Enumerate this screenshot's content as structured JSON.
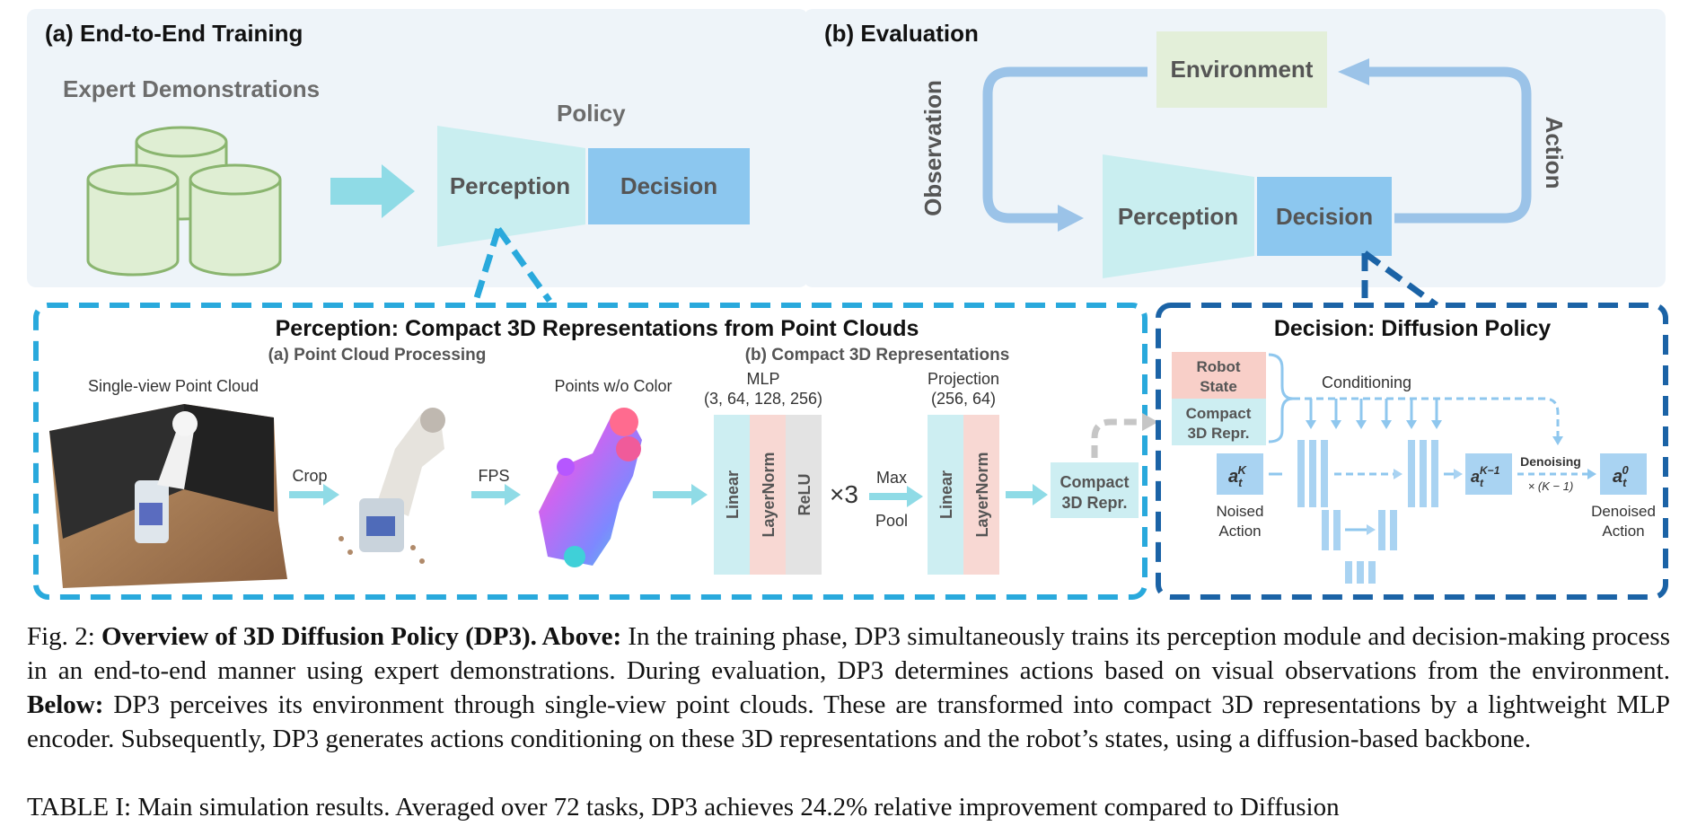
{
  "training": {
    "title": "(a) End-to-End Training",
    "expert": "Expert Demonstrations",
    "policy": "Policy",
    "perception": "Perception",
    "decision": "Decision"
  },
  "evaluation": {
    "title": "(b) Evaluation",
    "environment": "Environment",
    "observation": "Observation",
    "action": "Action",
    "perception": "Perception",
    "decision": "Decision"
  },
  "perception_box": {
    "title": "Perception: Compact 3D Representations from Point Clouds",
    "sub_a": "(a) Point Cloud Processing",
    "sub_b": "(b) Compact 3D Representations",
    "single_view": "Single-view Point Cloud",
    "crop": "Crop",
    "fps": "FPS",
    "points_wo_color": "Points w/o Color",
    "mlp_label": "MLP",
    "mlp_dims": "(3, 64, 128, 256)",
    "linear": "Linear",
    "layernorm": "LayerNorm",
    "relu": "ReLU",
    "times3": "×3",
    "max": "Max",
    "pool": "Pool",
    "projection": "Projection",
    "proj_dims": "(256, 64)",
    "compact1": "Compact",
    "compact2": "3D Repr."
  },
  "decision_box": {
    "title": "Decision: Diffusion Policy",
    "robot1": "Robot",
    "robot2": "State",
    "compact1": "Compact",
    "compact2": "3D Repr.",
    "conditioning": "Conditioning",
    "noised1": "Noised",
    "noised2": "Action",
    "denoised1": "Denoised",
    "denoised2": "Action",
    "denoising": "Denoising",
    "times_k": "× (K − 1)",
    "a_sym": "a",
    "t_sub": "t",
    "k_sup": "K",
    "km1_sup": "K−1",
    "zero_sup": "0"
  },
  "caption": {
    "fig": "Fig. 2: ",
    "title_bold": "Overview of 3D Diffusion Policy (DP3). Above:",
    "text1": " In the training phase, DP3 simultaneously trains its perception module and decision-making process in an end-to-end manner using expert demonstrations. During evaluation, DP3 determines actions based on visual observations from the environment. ",
    "below_bold": "Below:",
    "text2": " DP3 perceives its environment through single-view point clouds. These are transformed into compact 3D representations by a lightweight MLP encoder. Subsequently, DP3 generates actions conditioning on these 3D representations and the robot’s states, using a diffusion-based backbone."
  },
  "cutoff_line": "TABLE I: Main simulation results. Averaged over 72 tasks, DP3 achieves 24.2% relative improvement compared to Diffusion",
  "colors": {
    "panel_bg": "#eef4f9",
    "perception_fill": "#c9eef0",
    "decision_fill": "#8cc7ef",
    "env_fill": "#e3efd9",
    "arrow_cyan": "#8fdbe6",
    "arrow_blue": "#9bc3e8",
    "dash_cyan": "#29a9dc",
    "dash_navy": "#1b63a6",
    "robot_pink": "#f8cfc8",
    "compact_cyan": "#cdeef2",
    "unet_blue": "#a9d3f2",
    "pc_gradient": [
      "#ff5ca3",
      "#b657ff",
      "#4fa8ff",
      "#4ad4d4"
    ]
  }
}
